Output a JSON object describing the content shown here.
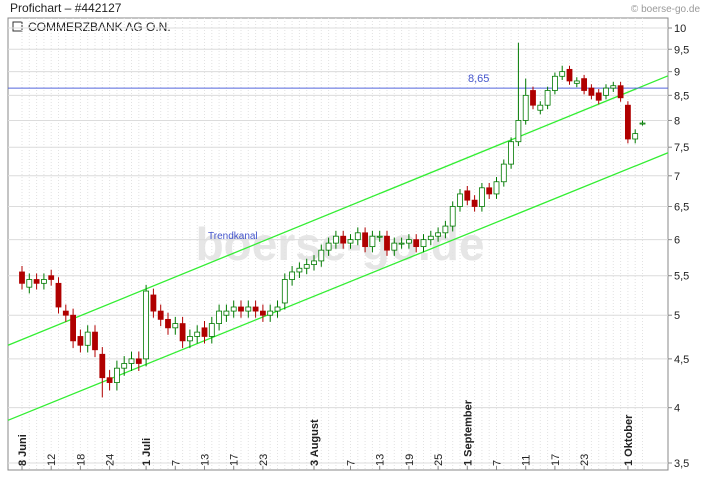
{
  "chart_data": {
    "type": "candlestick",
    "title": "Profichart – #442127",
    "source": "© boerse-go.de",
    "watermark": "boerse-go.de",
    "series_name": "COMMERZBANK AG O.N.",
    "log_scale": true,
    "grid": true,
    "up_color": "#007a00",
    "down_color": "#b00000",
    "ylim": [
      3.5,
      10
    ],
    "yticks": [
      {
        "value": 3.5,
        "label": "3,5"
      },
      4,
      {
        "value": 4.5,
        "label": "4,5"
      },
      5,
      {
        "value": 5.5,
        "label": "5,5"
      },
      6,
      {
        "value": 6.5,
        "label": "6,5"
      },
      7,
      {
        "value": 7.5,
        "label": "7,5"
      },
      8,
      {
        "value": 8.5,
        "label": "8,5"
      },
      9,
      {
        "value": 9.5,
        "label": "9,5"
      },
      10
    ],
    "categories": [
      "8 Juni",
      null,
      null,
      null,
      "12",
      null,
      null,
      null,
      "18",
      null,
      null,
      null,
      "24",
      null,
      null,
      null,
      null,
      "1 Juli",
      null,
      null,
      null,
      "7",
      null,
      null,
      null,
      "13",
      null,
      null,
      null,
      "17",
      null,
      null,
      null,
      "23",
      null,
      null,
      null,
      null,
      null,
      null,
      "3 August",
      null,
      null,
      null,
      null,
      "7",
      null,
      null,
      null,
      "13",
      null,
      null,
      null,
      "19",
      null,
      null,
      null,
      "25",
      null,
      null,
      null,
      "1 September",
      null,
      null,
      null,
      "7",
      null,
      null,
      null,
      "11",
      null,
      null,
      null,
      "17",
      null,
      null,
      null,
      "23",
      null,
      null,
      null,
      null,
      null,
      "1 Oktober",
      null,
      null
    ],
    "open": [
      5.55,
      5.35,
      5.45,
      5.4,
      5.5,
      5.4,
      5.05,
      5.0,
      4.75,
      4.65,
      4.8,
      4.55,
      4.3,
      4.25,
      4.4,
      4.45,
      4.5,
      4.5,
      5.25,
      5.05,
      4.95,
      4.85,
      4.9,
      4.7,
      4.75,
      4.85,
      4.75,
      4.9,
      5.0,
      5.05,
      5.1,
      5.05,
      5.1,
      5.05,
      5.0,
      5.05,
      5.15,
      5.45,
      5.55,
      5.6,
      5.65,
      5.7,
      5.85,
      5.95,
      6.05,
      5.95,
      6.0,
      6.1,
      5.9,
      6.05,
      6.05,
      5.85,
      5.95,
      5.95,
      6.0,
      5.9,
      6.0,
      6.05,
      6.1,
      6.2,
      6.5,
      6.75,
      6.6,
      6.5,
      6.8,
      6.7,
      6.9,
      7.2,
      7.6,
      8.0,
      8.6,
      8.2,
      8.3,
      8.6,
      8.9,
      9.05,
      8.75,
      8.85,
      8.65,
      8.55,
      8.5,
      8.65,
      8.7,
      8.3,
      7.65,
      7.95
    ],
    "high": [
      5.63,
      5.53,
      5.53,
      5.53,
      5.58,
      5.48,
      5.13,
      5.08,
      4.83,
      4.88,
      4.88,
      4.63,
      4.38,
      4.48,
      4.53,
      4.58,
      4.58,
      5.38,
      5.33,
      5.13,
      5.03,
      4.98,
      4.98,
      4.83,
      4.88,
      4.93,
      4.98,
      5.13,
      5.13,
      5.18,
      5.18,
      5.18,
      5.18,
      5.13,
      5.13,
      5.18,
      5.53,
      5.63,
      5.68,
      5.73,
      5.78,
      5.93,
      6.03,
      6.13,
      6.13,
      6.08,
      6.18,
      6.18,
      6.13,
      6.13,
      6.13,
      6.03,
      6.03,
      6.08,
      6.08,
      6.08,
      6.13,
      6.18,
      6.28,
      6.58,
      6.78,
      6.83,
      6.68,
      6.88,
      6.88,
      6.98,
      7.28,
      7.68,
      9.65,
      8.85,
      8.68,
      8.38,
      8.68,
      8.98,
      9.13,
      9.13,
      8.88,
      8.93,
      8.73,
      8.63,
      8.73,
      8.78,
      8.78,
      8.38,
      7.83,
      8.0
    ],
    "low": [
      5.32,
      5.27,
      5.32,
      5.32,
      5.37,
      5.02,
      4.92,
      4.62,
      4.57,
      4.57,
      4.52,
      4.1,
      4.17,
      4.17,
      4.32,
      4.37,
      4.37,
      4.42,
      4.97,
      4.87,
      4.77,
      4.77,
      4.62,
      4.62,
      4.67,
      4.67,
      4.67,
      4.82,
      4.92,
      4.97,
      4.97,
      4.97,
      4.97,
      4.92,
      4.92,
      4.97,
      5.07,
      5.37,
      5.47,
      5.52,
      5.57,
      5.62,
      5.77,
      5.87,
      5.87,
      5.87,
      5.92,
      5.82,
      5.82,
      5.97,
      5.77,
      5.77,
      5.87,
      5.87,
      5.82,
      5.82,
      5.92,
      5.97,
      6.02,
      6.12,
      6.42,
      6.52,
      6.42,
      6.42,
      6.62,
      6.62,
      6.82,
      7.12,
      7.52,
      7.92,
      8.22,
      8.12,
      8.22,
      8.52,
      8.82,
      8.72,
      8.67,
      8.52,
      8.42,
      8.32,
      8.42,
      8.57,
      8.37,
      7.57,
      7.57,
      7.9
    ],
    "close": [
      5.4,
      5.45,
      5.4,
      5.45,
      5.45,
      5.1,
      5.0,
      4.7,
      4.65,
      4.8,
      4.6,
      4.3,
      4.25,
      4.4,
      4.45,
      4.5,
      4.45,
      5.3,
      5.05,
      4.95,
      4.85,
      4.9,
      4.7,
      4.75,
      4.8,
      4.75,
      4.9,
      5.05,
      5.05,
      5.1,
      5.05,
      5.1,
      5.05,
      5.0,
      5.05,
      5.1,
      5.45,
      5.55,
      5.6,
      5.65,
      5.7,
      5.85,
      5.95,
      6.05,
      5.95,
      6.0,
      6.1,
      5.9,
      6.05,
      6.05,
      5.85,
      5.95,
      5.95,
      6.0,
      5.9,
      6.0,
      6.05,
      6.1,
      6.2,
      6.5,
      6.7,
      6.6,
      6.5,
      6.8,
      6.7,
      6.9,
      7.2,
      7.6,
      8.0,
      8.5,
      8.3,
      8.3,
      8.6,
      8.9,
      9.0,
      8.8,
      8.8,
      8.6,
      8.5,
      8.4,
      8.65,
      8.7,
      8.45,
      7.65,
      7.75,
      7.95
    ],
    "trendlines": [
      {
        "name": "Trendkanal",
        "color": "#33ee33",
        "values": [
          4.65,
          8.91
        ]
      },
      {
        "color": "#33ee33",
        "values": [
          3.88,
          7.4
        ]
      }
    ],
    "hline": {
      "value": 8.65,
      "label": "8,65",
      "color": "#5566dd"
    }
  }
}
